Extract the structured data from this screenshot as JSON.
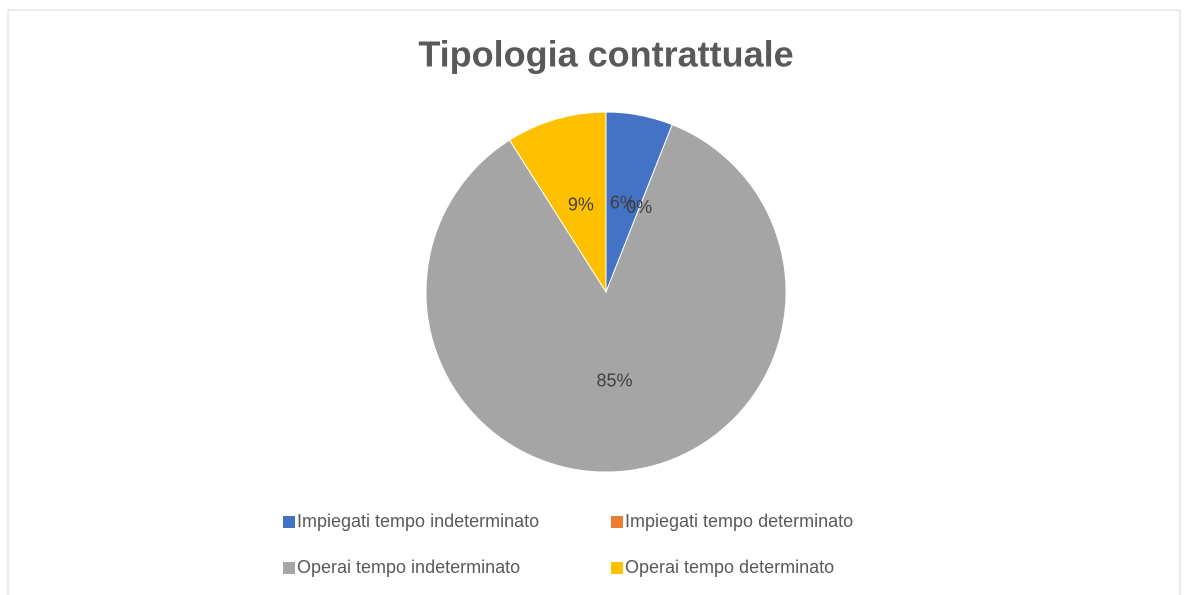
{
  "chart_data": {
    "type": "pie",
    "title": "Tipologia contrattuale",
    "categories": [
      "Impiegati tempo indeterminato",
      "Impiegati tempo determinato",
      "Operai tempo indeterminato",
      "Operai tempo determinato"
    ],
    "values": [
      6,
      0,
      85,
      9
    ],
    "value_labels": [
      "6%",
      "0%",
      "85%",
      "9%"
    ],
    "colors": [
      "#4472c4",
      "#ed7d31",
      "#a5a5a5",
      "#ffc000"
    ],
    "legend": "bottom"
  }
}
